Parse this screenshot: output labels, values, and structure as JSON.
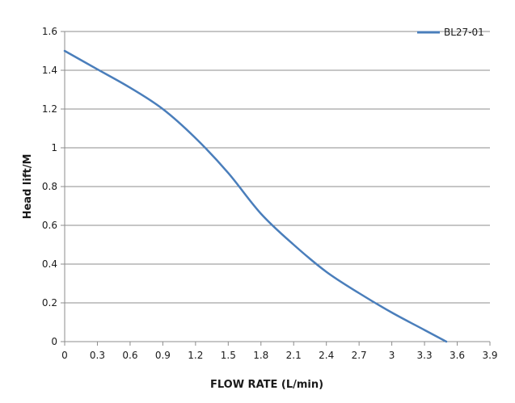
{
  "chart_data": {
    "type": "line",
    "title": "",
    "xlabel": "FLOW RATE (L/min)",
    "ylabel": "Head lift/M",
    "xlim": [
      0,
      3.9
    ],
    "ylim": [
      0,
      1.6
    ],
    "x_ticks": [
      "0",
      "0.3",
      "0.6",
      "0.9",
      "1.2",
      "1.5",
      "1.8",
      "2.1",
      "2.4",
      "2.7",
      "3",
      "3.3",
      "3.6",
      "3.9"
    ],
    "y_ticks": [
      "0",
      "0.2",
      "0.4",
      "0.6",
      "0.8",
      "1",
      "1.2",
      "1.4",
      "1.6"
    ],
    "grid": "horizontal",
    "legend_position": "top-right",
    "series": [
      {
        "name": "BL27-01",
        "color": "#4a7ebb",
        "x": [
          0,
          0.3,
          0.6,
          0.9,
          1.2,
          1.5,
          1.8,
          2.1,
          2.4,
          2.7,
          3.0,
          3.3,
          3.5
        ],
        "y": [
          1.5,
          1.405,
          1.31,
          1.2,
          1.05,
          0.87,
          0.66,
          0.5,
          0.36,
          0.25,
          0.15,
          0.06,
          0.0
        ]
      }
    ]
  }
}
